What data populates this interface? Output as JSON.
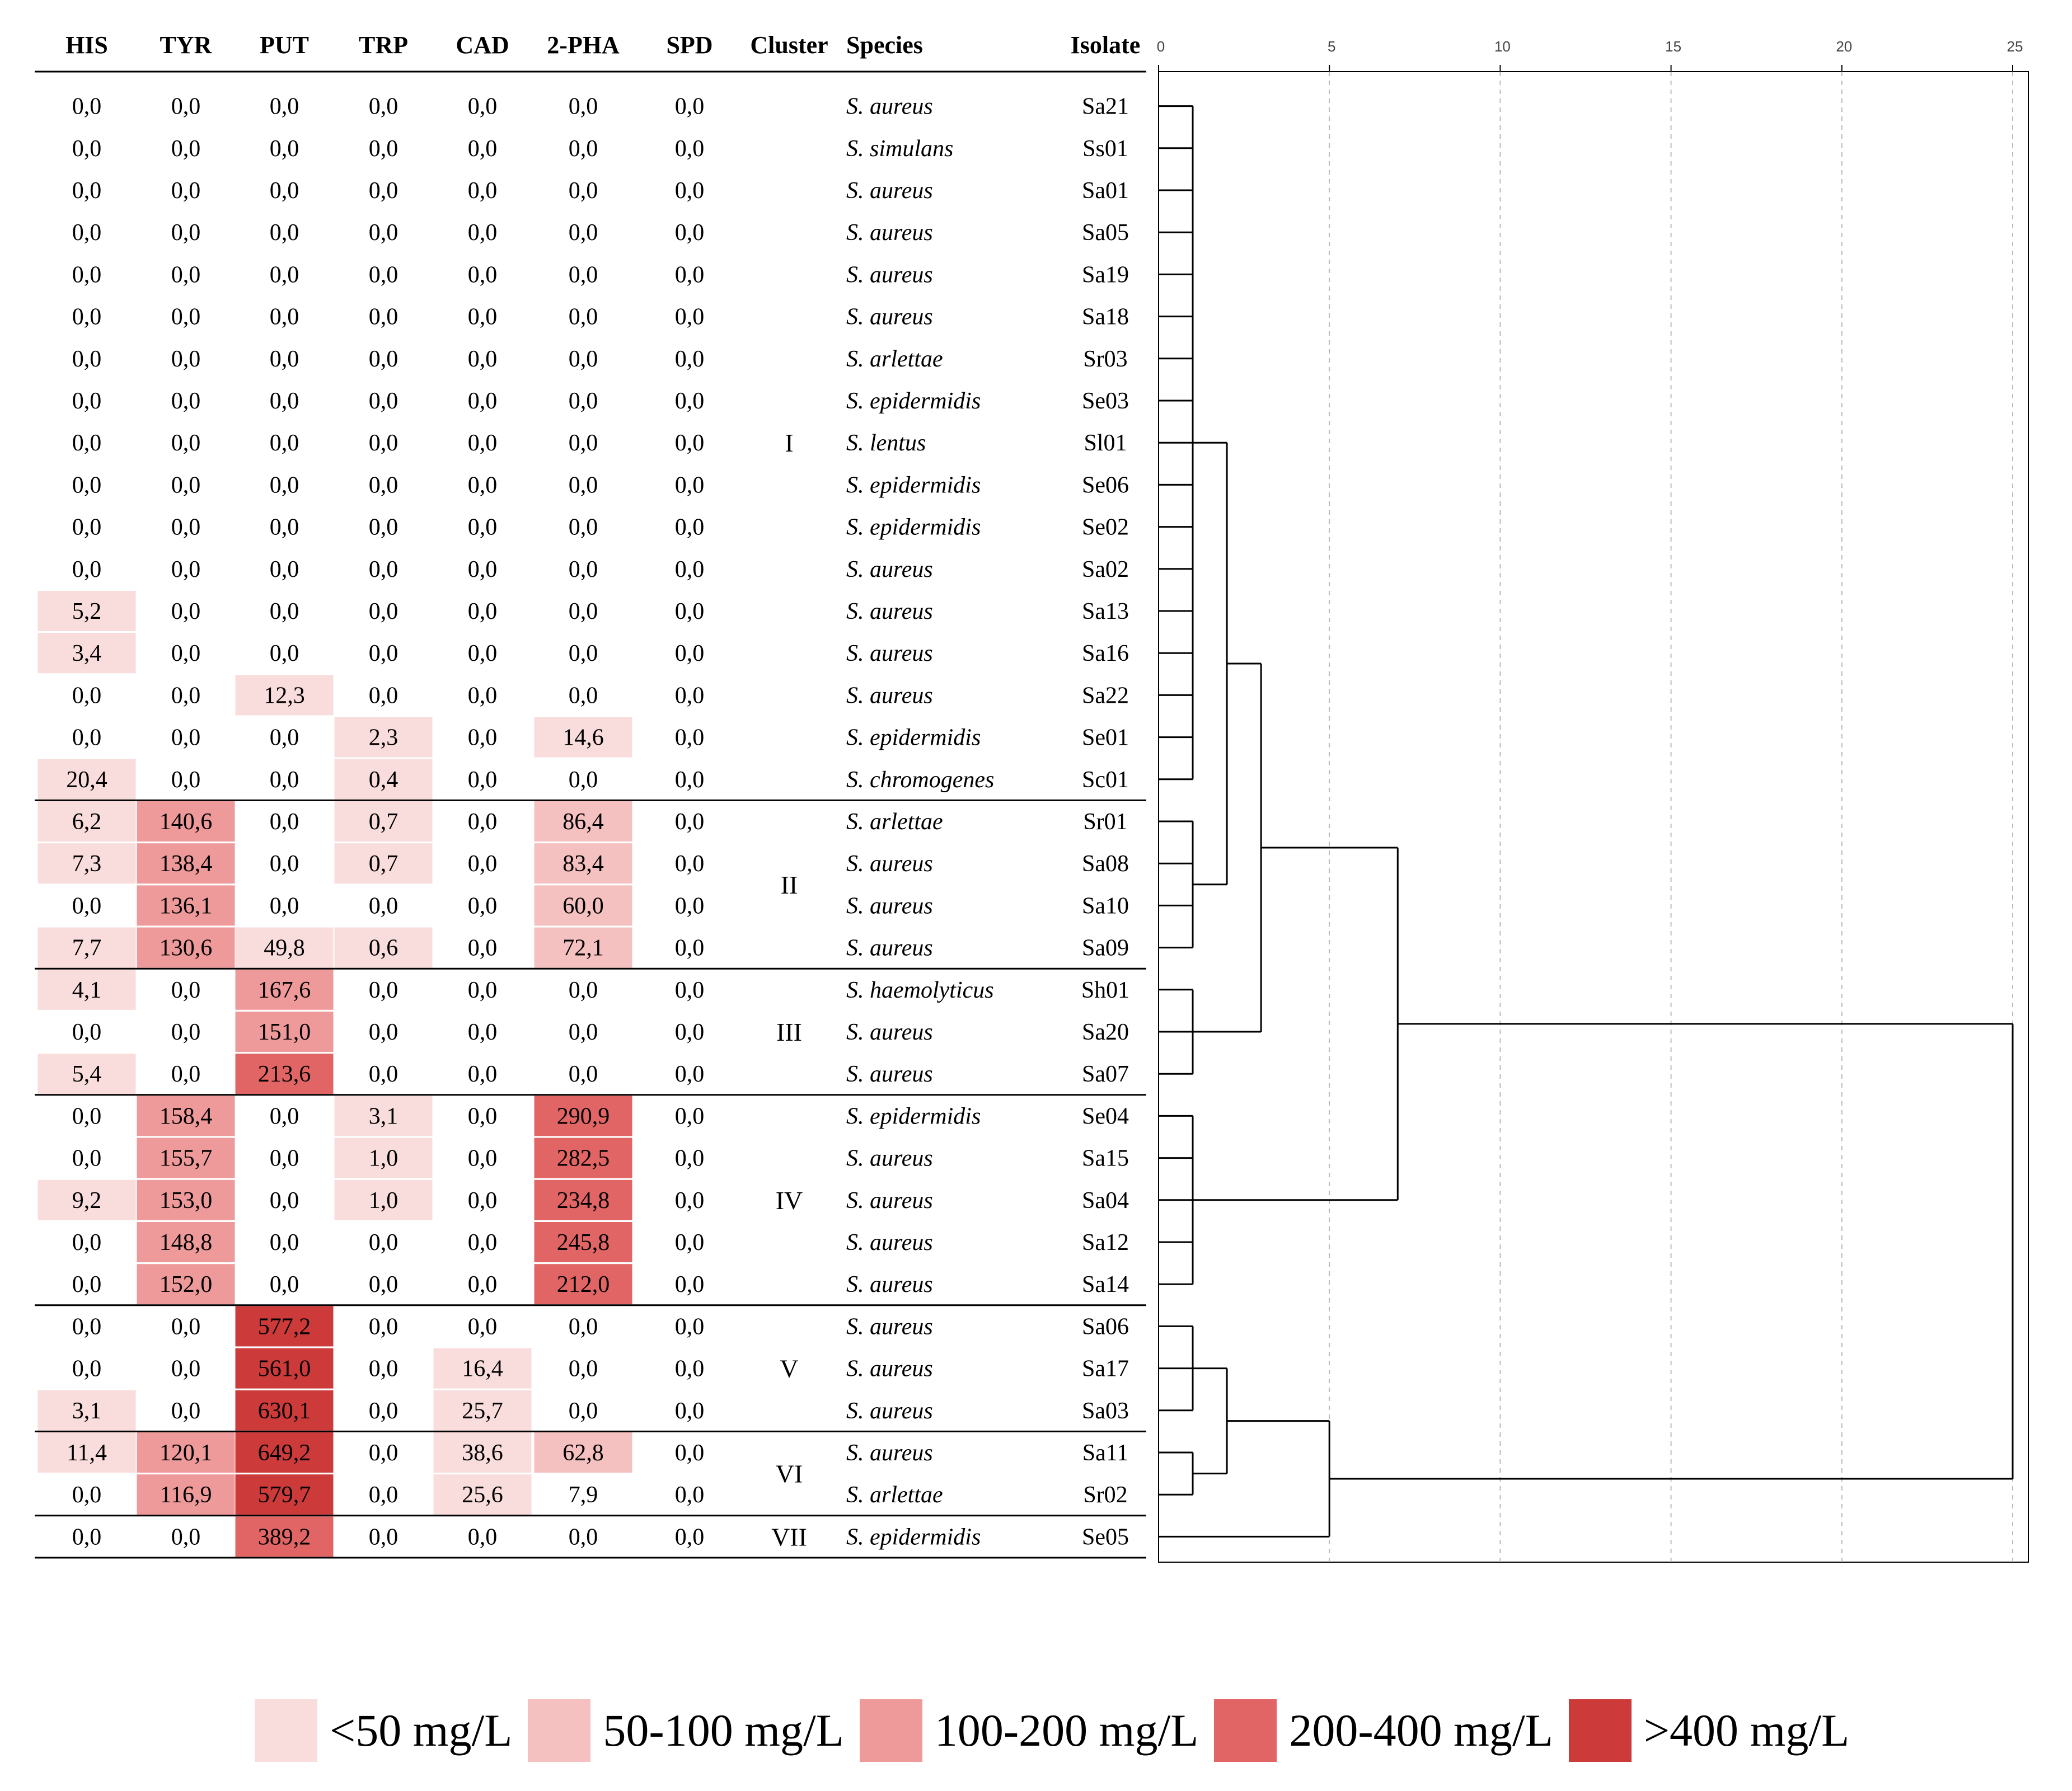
{
  "chart_data": [
    {
      "type": "table",
      "columns": [
        "HIS",
        "TYR",
        "PUT",
        "TRP",
        "CAD",
        "2-PHA",
        "SPD",
        "Cluster",
        "Species",
        "Isolate"
      ],
      "numeric_columns": [
        "HIS",
        "TYR",
        "PUT",
        "TRP",
        "CAD",
        "2-PHA",
        "SPD"
      ],
      "rows": [
        {
          "isolate": "Sa21",
          "species": "S. aureus",
          "values": [
            "0,0",
            "0,0",
            "0,0",
            "0,0",
            "0,0",
            "0,0",
            "0,0"
          ]
        },
        {
          "isolate": "Ss01",
          "species": "S. simulans",
          "values": [
            "0,0",
            "0,0",
            "0,0",
            "0,0",
            "0,0",
            "0,0",
            "0,0"
          ]
        },
        {
          "isolate": "Sa01",
          "species": "S. aureus",
          "values": [
            "0,0",
            "0,0",
            "0,0",
            "0,0",
            "0,0",
            "0,0",
            "0,0"
          ]
        },
        {
          "isolate": "Sa05",
          "species": "S. aureus",
          "values": [
            "0,0",
            "0,0",
            "0,0",
            "0,0",
            "0,0",
            "0,0",
            "0,0"
          ]
        },
        {
          "isolate": "Sa19",
          "species": "S. aureus",
          "values": [
            "0,0",
            "0,0",
            "0,0",
            "0,0",
            "0,0",
            "0,0",
            "0,0"
          ]
        },
        {
          "isolate": "Sa18",
          "species": "S. aureus",
          "values": [
            "0,0",
            "0,0",
            "0,0",
            "0,0",
            "0,0",
            "0,0",
            "0,0"
          ]
        },
        {
          "isolate": "Sr03",
          "species": "S. arlettae",
          "values": [
            "0,0",
            "0,0",
            "0,0",
            "0,0",
            "0,0",
            "0,0",
            "0,0"
          ]
        },
        {
          "isolate": "Se03",
          "species": "S. epidermidis",
          "values": [
            "0,0",
            "0,0",
            "0,0",
            "0,0",
            "0,0",
            "0,0",
            "0,0"
          ]
        },
        {
          "isolate": "Sl01",
          "species": "S. lentus",
          "values": [
            "0,0",
            "0,0",
            "0,0",
            "0,0",
            "0,0",
            "0,0",
            "0,0"
          ]
        },
        {
          "isolate": "Se06",
          "species": "S. epidermidis",
          "values": [
            "0,0",
            "0,0",
            "0,0",
            "0,0",
            "0,0",
            "0,0",
            "0,0"
          ]
        },
        {
          "isolate": "Se02",
          "species": "S. epidermidis",
          "values": [
            "0,0",
            "0,0",
            "0,0",
            "0,0",
            "0,0",
            "0,0",
            "0,0"
          ]
        },
        {
          "isolate": "Sa02",
          "species": "S. aureus",
          "values": [
            "0,0",
            "0,0",
            "0,0",
            "0,0",
            "0,0",
            "0,0",
            "0,0"
          ]
        },
        {
          "isolate": "Sa13",
          "species": "S. aureus",
          "values": [
            "5,2",
            "0,0",
            "0,0",
            "0,0",
            "0,0",
            "0,0",
            "0,0"
          ]
        },
        {
          "isolate": "Sa16",
          "species": "S. aureus",
          "values": [
            "3,4",
            "0,0",
            "0,0",
            "0,0",
            "0,0",
            "0,0",
            "0,0"
          ]
        },
        {
          "isolate": "Sa22",
          "species": "S. aureus",
          "values": [
            "0,0",
            "0,0",
            "12,3",
            "0,0",
            "0,0",
            "0,0",
            "0,0"
          ]
        },
        {
          "isolate": "Se01",
          "species": "S. epidermidis",
          "values": [
            "0,0",
            "0,0",
            "0,0",
            "2,3",
            "0,0",
            "14,6",
            "0,0"
          ]
        },
        {
          "isolate": "Sc01",
          "species": "S. chromogenes",
          "values": [
            "20,4",
            "0,0",
            "0,0",
            "0,4",
            "0,0",
            "0,0",
            "0,0"
          ]
        },
        {
          "isolate": "Sr01",
          "species": "S. arlettae",
          "values": [
            "6,2",
            "140,6",
            "0,0",
            "0,7",
            "0,0",
            "86,4",
            "0,0"
          ]
        },
        {
          "isolate": "Sa08",
          "species": "S. aureus",
          "values": [
            "7,3",
            "138,4",
            "0,0",
            "0,7",
            "0,0",
            "83,4",
            "0,0"
          ]
        },
        {
          "isolate": "Sa10",
          "species": "S. aureus",
          "values": [
            "0,0",
            "136,1",
            "0,0",
            "0,0",
            "0,0",
            "60,0",
            "0,0"
          ]
        },
        {
          "isolate": "Sa09",
          "species": "S. aureus",
          "values": [
            "7,7",
            "130,6",
            "49,8",
            "0,6",
            "0,0",
            "72,1",
            "0,0"
          ]
        },
        {
          "isolate": "Sh01",
          "species": "S. haemolyticus",
          "values": [
            "4,1",
            "0,0",
            "167,6",
            "0,0",
            "0,0",
            "0,0",
            "0,0"
          ]
        },
        {
          "isolate": "Sa20",
          "species": "S. aureus",
          "values": [
            "0,0",
            "0,0",
            "151,0",
            "0,0",
            "0,0",
            "0,0",
            "0,0"
          ]
        },
        {
          "isolate": "Sa07",
          "species": "S. aureus",
          "values": [
            "5,4",
            "0,0",
            "213,6",
            "0,0",
            "0,0",
            "0,0",
            "0,0"
          ]
        },
        {
          "isolate": "Se04",
          "species": "S. epidermidis",
          "values": [
            "0,0",
            "158,4",
            "0,0",
            "3,1",
            "0,0",
            "290,9",
            "0,0"
          ]
        },
        {
          "isolate": "Sa15",
          "species": "S. aureus",
          "values": [
            "0,0",
            "155,7",
            "0,0",
            "1,0",
            "0,0",
            "282,5",
            "0,0"
          ]
        },
        {
          "isolate": "Sa04",
          "species": "S. aureus",
          "values": [
            "9,2",
            "153,0",
            "0,0",
            "1,0",
            "0,0",
            "234,8",
            "0,0"
          ]
        },
        {
          "isolate": "Sa12",
          "species": "S. aureus",
          "values": [
            "0,0",
            "148,8",
            "0,0",
            "0,0",
            "0,0",
            "245,8",
            "0,0"
          ]
        },
        {
          "isolate": "Sa14",
          "species": "S. aureus",
          "values": [
            "0,0",
            "152,0",
            "0,0",
            "0,0",
            "0,0",
            "212,0",
            "0,0"
          ]
        },
        {
          "isolate": "Sa06",
          "species": "S. aureus",
          "values": [
            "0,0",
            "0,0",
            "577,2",
            "0,0",
            "0,0",
            "0,0",
            "0,0"
          ]
        },
        {
          "isolate": "Sa17",
          "species": "S. aureus",
          "values": [
            "0,0",
            "0,0",
            "561,0",
            "0,0",
            "16,4",
            "0,0",
            "0,0"
          ]
        },
        {
          "isolate": "Sa03",
          "species": "S. aureus",
          "values": [
            "3,1",
            "0,0",
            "630,1",
            "0,0",
            "25,7",
            "0,0",
            "0,0"
          ]
        },
        {
          "isolate": "Sa11",
          "species": "S. aureus",
          "values": [
            "11,4",
            "120,1",
            "649,2",
            "0,0",
            "38,6",
            "62,8",
            "0,0"
          ]
        },
        {
          "isolate": "Sr02",
          "species": "S. arlettae",
          "values": [
            "0,0",
            "116,9",
            "579,7",
            "0,0",
            "25,6",
            "7,9",
            "0,0"
          ]
        },
        {
          "isolate": "Se05",
          "species": "S. epidermidis",
          "values": [
            "0,0",
            "0,0",
            "389,2",
            "0,0",
            "0,0",
            "0,0",
            "0,0"
          ]
        }
      ],
      "clusters": [
        {
          "label": "I",
          "rows": [
            0,
            16
          ]
        },
        {
          "label": "II",
          "rows": [
            17,
            20
          ]
        },
        {
          "label": "III",
          "rows": [
            21,
            23
          ]
        },
        {
          "label": "IV",
          "rows": [
            24,
            28
          ]
        },
        {
          "label": "V",
          "rows": [
            29,
            31
          ]
        },
        {
          "label": "VI",
          "rows": [
            32,
            33
          ]
        },
        {
          "label": "VII",
          "rows": [
            34,
            34
          ]
        }
      ],
      "unhighlighted_cells": [
        [
          33,
          5
        ]
      ],
      "color_scale": [
        {
          "label": "<50 mg/L",
          "max": 50,
          "color": "#f9dcdc"
        },
        {
          "label": "50-100 mg/L",
          "max": 100,
          "color": "#f5c0c0"
        },
        {
          "label": "100-200 mg/L",
          "max": 200,
          "color": "#ef9a9a"
        },
        {
          "label": "200-400 mg/L",
          "max": 400,
          "color": "#e26565"
        },
        {
          "label": ">400 mg/L",
          "max": 100000,
          "color": "#cc3a3a"
        }
      ]
    },
    {
      "type": "dendrogram",
      "axis_ticks": [
        "0",
        "5",
        "10",
        "15",
        "20",
        "25"
      ],
      "xlim": [
        0,
        25
      ],
      "grid": true,
      "leaf_height": 1,
      "merges": [
        {
          "id": "c1",
          "a": {
            "leafrange": [
              0,
              16
            ]
          },
          "b": null,
          "h": 1
        },
        {
          "id": "c2",
          "a": {
            "leafrange": [
              17,
              20
            ]
          },
          "b": null,
          "h": 1
        },
        {
          "id": "c3",
          "a": {
            "leafrange": [
              21,
              23
            ]
          },
          "b": null,
          "h": 1
        },
        {
          "id": "c4",
          "a": {
            "leafrange": [
              24,
              28
            ]
          },
          "b": null,
          "h": 1
        },
        {
          "id": "c5",
          "a": {
            "leafrange": [
              29,
              31
            ]
          },
          "b": null,
          "h": 1
        },
        {
          "id": "c6",
          "a": {
            "leafrange": [
              32,
              33
            ]
          },
          "b": null,
          "h": 1
        },
        {
          "id": "m1",
          "a": "c1",
          "b": "c2",
          "h": 2
        },
        {
          "id": "m2",
          "a": "m1",
          "b": "c3",
          "h": 3
        },
        {
          "id": "m3",
          "a": "m2",
          "b": "c4",
          "h": 7
        },
        {
          "id": "m4",
          "a": "c5",
          "b": "c6",
          "h": 2
        },
        {
          "id": "m5",
          "a": "m4",
          "b": {
            "leaf": 34
          },
          "h": 5
        },
        {
          "id": "m6",
          "a": "m3",
          "b": "m5",
          "h": 25
        }
      ]
    }
  ]
}
